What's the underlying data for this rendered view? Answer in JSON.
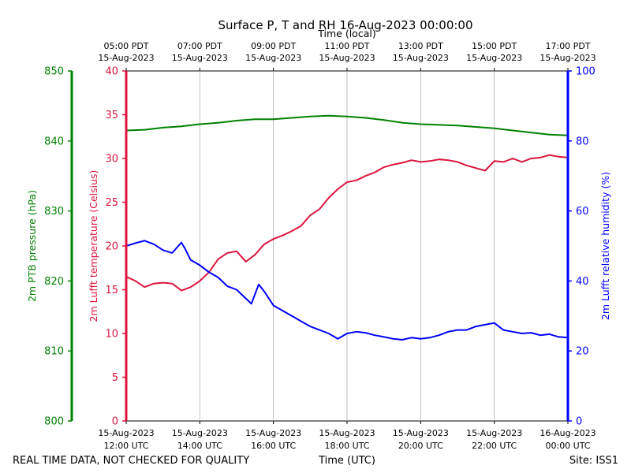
{
  "chart_data": {
    "type": "line",
    "title": "Surface P, T and RH 16-Aug-2023 00:00:00",
    "top_xlabel": "Time (local)",
    "xlabel": "Time (UTC)",
    "footer_left": "REAL TIME DATA, NOT CHECKED FOR QUALITY",
    "footer_right": "Site: ISS1",
    "xlim_utc_hours": [
      12.0,
      24.0
    ],
    "grid": "vertical",
    "x_ticks": [
      {
        "utc_hour": 12,
        "bottom_date": "15-Aug-2023",
        "bottom_time": "12:00 UTC",
        "top_time": "05:00 PDT",
        "top_date": "15-Aug-2023"
      },
      {
        "utc_hour": 14,
        "bottom_date": "15-Aug-2023",
        "bottom_time": "14:00 UTC",
        "top_time": "07:00 PDT",
        "top_date": "15-Aug-2023"
      },
      {
        "utc_hour": 16,
        "bottom_date": "15-Aug-2023",
        "bottom_time": "16:00 UTC",
        "top_time": "09:00 PDT",
        "top_date": "15-Aug-2023"
      },
      {
        "utc_hour": 18,
        "bottom_date": "15-Aug-2023",
        "bottom_time": "18:00 UTC",
        "top_time": "11:00 PDT",
        "top_date": "15-Aug-2023"
      },
      {
        "utc_hour": 20,
        "bottom_date": "15-Aug-2023",
        "bottom_time": "20:00 UTC",
        "top_time": "13:00 PDT",
        "top_date": "15-Aug-2023"
      },
      {
        "utc_hour": 22,
        "bottom_date": "15-Aug-2023",
        "bottom_time": "22:00 UTC",
        "top_time": "15:00 PDT",
        "top_date": "15-Aug-2023"
      },
      {
        "utc_hour": 24,
        "bottom_date": "16-Aug-2023",
        "bottom_time": "00:00 UTC",
        "top_time": "17:00 PDT",
        "top_date": "15-Aug-2023"
      }
    ],
    "axes": {
      "pressure": {
        "label": "2m PTB pressure (hPa)",
        "ylim": [
          800,
          850
        ],
        "ticks": [
          800,
          810,
          820,
          830,
          840,
          850
        ],
        "color": "#008000"
      },
      "temperature": {
        "label": "2m Lufft temperature (Celsius)",
        "ylim": [
          0,
          40
        ],
        "ticks": [
          0,
          5,
          10,
          15,
          20,
          25,
          30,
          35,
          40
        ],
        "color": "#dc143c"
      },
      "humidity": {
        "label": "2m Lufft relative humidity (%)",
        "ylim": [
          0,
          100
        ],
        "ticks": [
          0,
          20,
          40,
          60,
          80,
          100
        ],
        "color": "#0000ff"
      }
    },
    "series": [
      {
        "axis": "pressure",
        "color": "#008000",
        "x": [
          12.0,
          12.5,
          13.0,
          13.5,
          14.0,
          14.5,
          15.0,
          15.5,
          16.0,
          16.5,
          17.0,
          17.5,
          18.0,
          18.5,
          19.0,
          19.5,
          20.0,
          20.5,
          21.0,
          21.5,
          22.0,
          22.5,
          23.0,
          23.5,
          24.0
        ],
        "y": [
          841.5,
          841.6,
          841.9,
          842.1,
          842.4,
          842.6,
          842.9,
          843.1,
          843.1,
          843.3,
          843.5,
          843.6,
          843.5,
          843.3,
          843.0,
          842.6,
          842.4,
          842.3,
          842.2,
          842.0,
          841.8,
          841.5,
          841.2,
          840.9,
          840.8
        ]
      },
      {
        "axis": "temperature",
        "color": "#dc143c",
        "x": [
          12.0,
          12.25,
          12.5,
          12.75,
          13.0,
          13.25,
          13.5,
          13.75,
          14.0,
          14.25,
          14.5,
          14.75,
          15.0,
          15.25,
          15.5,
          15.75,
          16.0,
          16.25,
          16.5,
          16.75,
          17.0,
          17.25,
          17.5,
          17.75,
          18.0,
          18.25,
          18.5,
          18.75,
          19.0,
          19.25,
          19.5,
          19.75,
          20.0,
          20.25,
          20.5,
          20.75,
          21.0,
          21.25,
          21.5,
          21.75,
          22.0,
          22.25,
          22.5,
          22.75,
          23.0,
          23.25,
          23.5,
          23.75,
          24.0
        ],
        "y": [
          16.5,
          16.0,
          15.3,
          15.7,
          15.8,
          15.7,
          14.9,
          15.3,
          16.0,
          17.0,
          18.5,
          19.2,
          19.4,
          18.2,
          19.0,
          20.2,
          20.8,
          21.2,
          21.7,
          22.3,
          23.5,
          24.2,
          25.5,
          26.5,
          27.3,
          27.5,
          28.0,
          28.4,
          29.0,
          29.3,
          29.5,
          29.8,
          29.6,
          29.7,
          29.9,
          29.8,
          29.6,
          29.2,
          28.9,
          28.6,
          29.7,
          29.6,
          30.0,
          29.6,
          30.0,
          30.1,
          30.4,
          30.2,
          30.1
        ]
      },
      {
        "axis": "humidity",
        "color": "#0000ff",
        "x": [
          12.0,
          12.25,
          12.5,
          12.75,
          13.0,
          13.25,
          13.5,
          13.6,
          13.75,
          14.0,
          14.25,
          14.5,
          14.75,
          15.0,
          15.25,
          15.4,
          15.6,
          15.75,
          16.0,
          16.25,
          16.5,
          16.75,
          17.0,
          17.25,
          17.5,
          17.75,
          18.0,
          18.25,
          18.5,
          18.75,
          19.0,
          19.25,
          19.5,
          19.75,
          20.0,
          20.25,
          20.5,
          20.75,
          21.0,
          21.25,
          21.5,
          21.75,
          22.0,
          22.25,
          22.5,
          22.75,
          23.0,
          23.25,
          23.5,
          23.75,
          24.0
        ],
        "y": [
          50.0,
          50.8,
          51.5,
          50.5,
          48.8,
          48.0,
          51.0,
          49.2,
          46.0,
          44.5,
          42.5,
          41.0,
          38.5,
          37.5,
          35.0,
          33.5,
          39.0,
          37.0,
          33.0,
          31.5,
          30.0,
          28.5,
          27.0,
          26.0,
          25.0,
          23.5,
          25.0,
          25.5,
          25.2,
          24.5,
          24.0,
          23.5,
          23.2,
          23.8,
          23.5,
          23.8,
          24.5,
          25.5,
          26.0,
          26.0,
          27.0,
          27.5,
          28.0,
          26.0,
          25.5,
          25.0,
          25.2,
          24.5,
          24.8,
          24.0,
          23.8
        ]
      }
    ]
  }
}
